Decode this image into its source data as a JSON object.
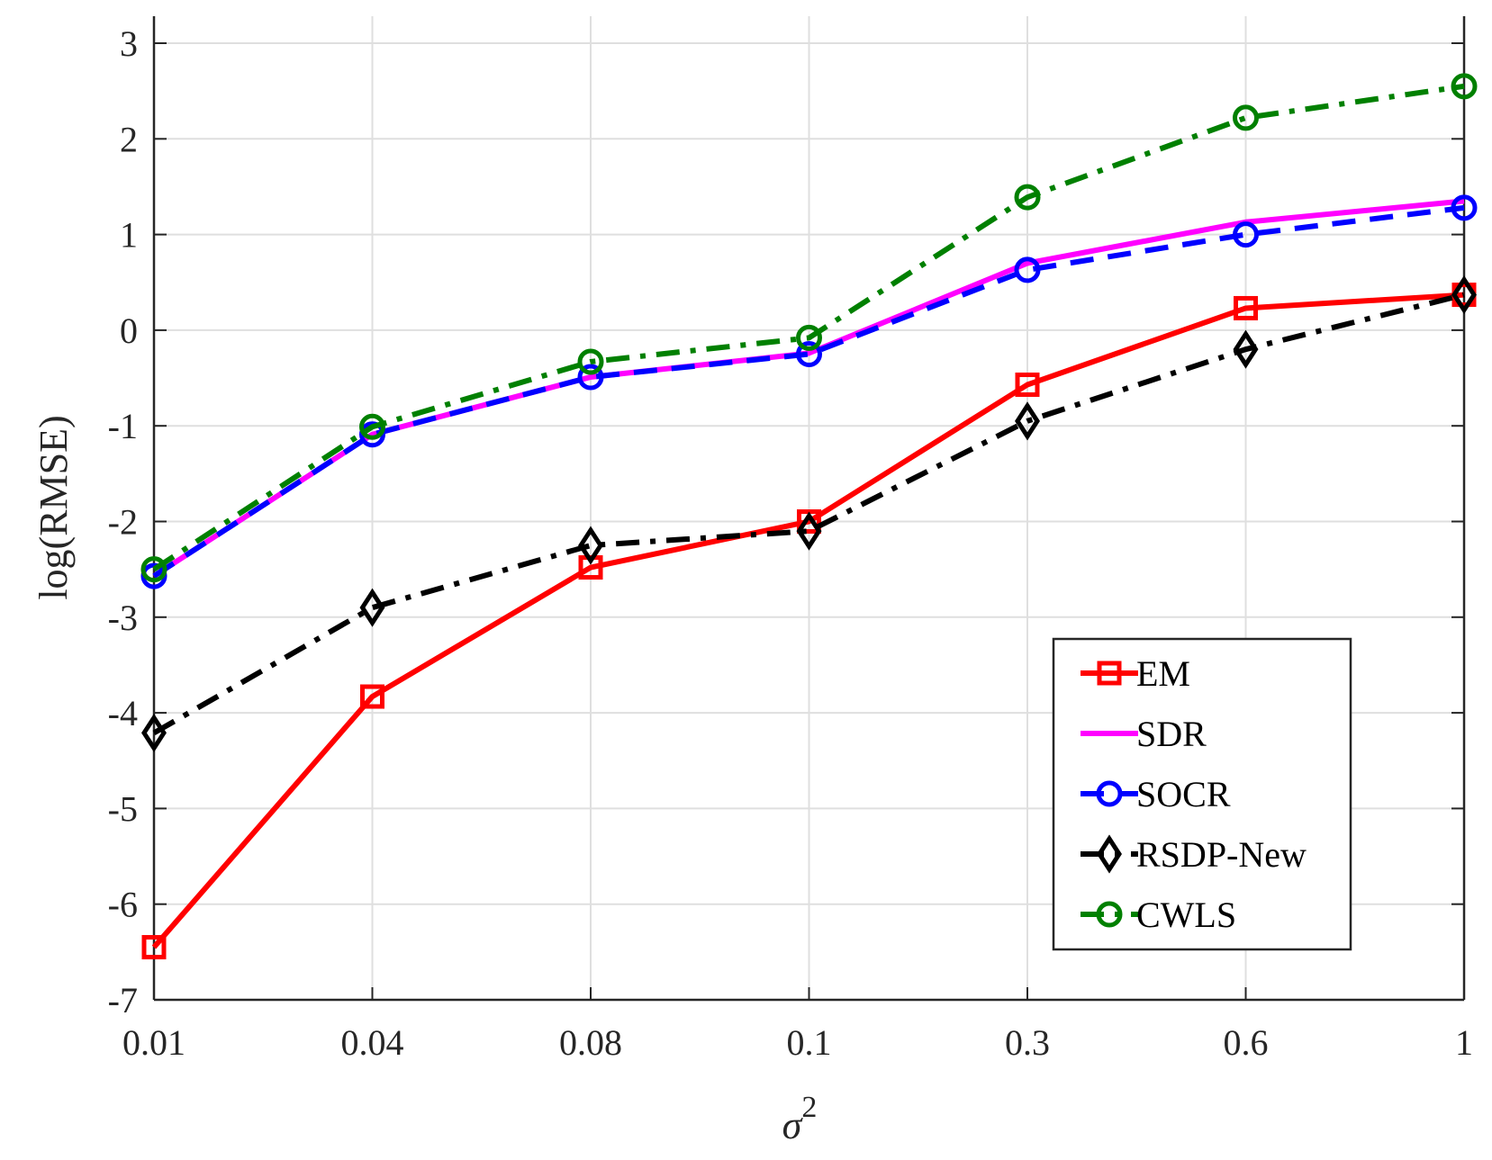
{
  "chart_data": {
    "type": "line",
    "categories": [
      "0.01",
      "0.04",
      "0.08",
      "0.1",
      "0.3",
      "0.6",
      "1"
    ],
    "ylabel": "log(RMSE)",
    "xlabel_symbol": "σ",
    "xlabel_superscript": "2",
    "ylim": [
      -7,
      3
    ],
    "yticks": [
      "3",
      "2",
      "1",
      "0",
      "-1",
      "-2",
      "-3",
      "-4",
      "-5",
      "-6",
      "-7"
    ],
    "grid": true,
    "legend_position": "bottom-right",
    "series": [
      {
        "name": "EM",
        "color": "#ff0000",
        "dash": "solid",
        "marker": "square",
        "values": [
          -6.45,
          -3.83,
          -2.48,
          -2.0,
          -0.57,
          0.23,
          0.37
        ]
      },
      {
        "name": "SDR",
        "color": "#ff00ff",
        "dash": "solid",
        "marker": "none",
        "values": [
          -2.57,
          -1.09,
          -0.49,
          -0.24,
          0.7,
          1.13,
          1.35
        ]
      },
      {
        "name": "SOCR",
        "color": "#0000ff",
        "dash": "dashed",
        "marker": "circle",
        "values": [
          -2.57,
          -1.09,
          -0.49,
          -0.25,
          0.63,
          1.0,
          1.28
        ]
      },
      {
        "name": "RSDP-New",
        "color": "#000000",
        "dash": "dashdot",
        "marker": "diamond",
        "values": [
          -4.21,
          -2.9,
          -2.25,
          -2.1,
          -0.95,
          -0.2,
          0.37
        ]
      },
      {
        "name": "CWLS",
        "color": "#008000",
        "dash": "dashdot",
        "marker": "circle",
        "values": [
          -2.5,
          -1.01,
          -0.33,
          -0.08,
          1.39,
          2.22,
          2.55
        ]
      }
    ]
  }
}
